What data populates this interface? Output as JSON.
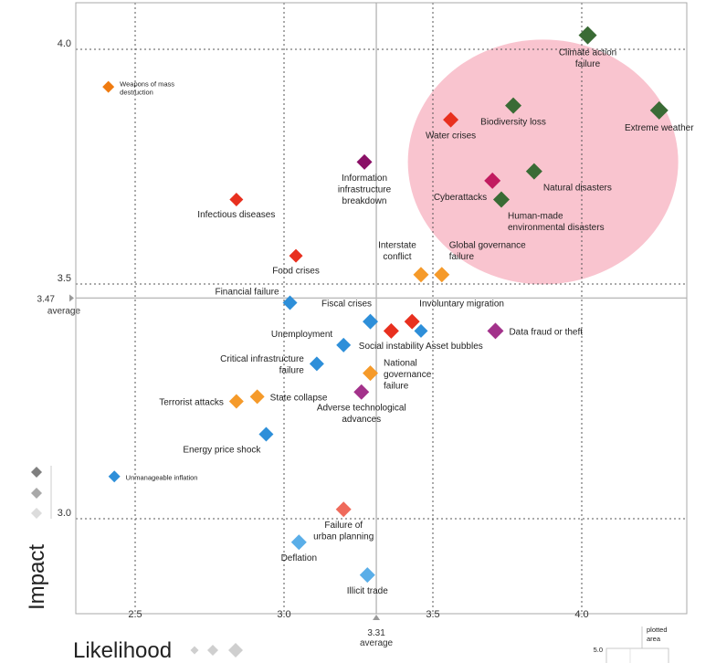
{
  "chart_data": {
    "type": "scatter",
    "title": "",
    "xlabel": "Likelihood",
    "ylabel": "Impact",
    "xlim": [
      2.29,
      4.35
    ],
    "ylim": [
      2.79,
      4.08
    ],
    "x_ticks": [
      {
        "value": 2.5,
        "label": "2.5"
      },
      {
        "value": 3.0,
        "label": "3.0"
      },
      {
        "value": 3.5,
        "label": "3.5"
      },
      {
        "value": 4.0,
        "label": "4.0"
      }
    ],
    "y_ticks": [
      {
        "value": 3.0,
        "label": "3.0"
      },
      {
        "value": 3.5,
        "label": "3.5"
      },
      {
        "value": 4.0,
        "label": "4.0"
      }
    ],
    "grid": true,
    "x_average": {
      "value": 3.31,
      "label": "3.31",
      "caption": "average"
    },
    "y_average": {
      "value": 3.47,
      "label": "3.47",
      "caption": "average"
    },
    "highlight": {
      "shape": "ellipse",
      "center": [
        3.87,
        3.76
      ],
      "color": "#f9c4cf"
    },
    "colors": {
      "environmental": "#3a6b35",
      "economic": "#2e8fd9",
      "economic_light": "#5aaee8",
      "geopolitical": "#f59a2a",
      "geopolitical_dark": "#ef7b10",
      "societal": "#e8301f",
      "societal_light": "#ef6a5b",
      "technological": "#a3328b",
      "technological_dark": "#8a1066",
      "technological_pink": "#c21b60",
      "axis": "#aaaaaa",
      "avg_line": "#bdbdbd"
    },
    "points": [
      {
        "name": "Climate action failure",
        "lines": [
          "Climate action",
          "failure"
        ],
        "x": 4.02,
        "y": 4.03,
        "color": "#3a6b35",
        "size": 10,
        "label_pos": "below"
      },
      {
        "name": "Extreme weather",
        "lines": [
          "Extreme weather"
        ],
        "x": 4.26,
        "y": 3.87,
        "color": "#3a6b35",
        "size": 10,
        "label_pos": "below"
      },
      {
        "name": "Biodiversity loss",
        "lines": [
          "Biodiversity loss"
        ],
        "x": 3.77,
        "y": 3.88,
        "color": "#3a6b35",
        "size": 9,
        "label_pos": "below"
      },
      {
        "name": "Water crises",
        "lines": [
          "Water crises"
        ],
        "x": 3.56,
        "y": 3.85,
        "color": "#e8301f",
        "size": 8.5,
        "label_pos": "below"
      },
      {
        "name": "Natural disasters",
        "lines": [
          "Natural disasters"
        ],
        "x": 3.84,
        "y": 3.74,
        "color": "#3a6b35",
        "size": 9,
        "label_pos": "below-right"
      },
      {
        "name": "Cyberattacks",
        "lines": [
          "Cyberattacks"
        ],
        "x": 3.7,
        "y": 3.72,
        "color": "#c21b60",
        "size": 9,
        "label_pos": "below-left"
      },
      {
        "name": "Human-made environmental disasters",
        "lines": [
          "Human-made",
          "environmental disasters"
        ],
        "x": 3.73,
        "y": 3.68,
        "color": "#3a6b35",
        "size": 9,
        "label_pos": "below-right"
      },
      {
        "name": "Weapons of mass destruction",
        "lines": [
          "Weapons of mass",
          "destruction"
        ],
        "x": 2.41,
        "y": 3.92,
        "color": "#ef7b10",
        "size": 6.5,
        "label_pos": "right",
        "small": true
      },
      {
        "name": "Information infrastructure breakdown",
        "lines": [
          "Information",
          "infrastructure",
          "breakdown"
        ],
        "x": 3.27,
        "y": 3.76,
        "color": "#8a1066",
        "size": 8.5,
        "label_pos": "below"
      },
      {
        "name": "Infectious diseases",
        "lines": [
          "Infectious diseases"
        ],
        "x": 2.84,
        "y": 3.68,
        "color": "#e8301f",
        "size": 7.5,
        "label_pos": "below"
      },
      {
        "name": "Food crises",
        "lines": [
          "Food crises"
        ],
        "x": 3.04,
        "y": 3.56,
        "color": "#e8301f",
        "size": 7.5,
        "label_pos": "below"
      },
      {
        "name": "Interstate conflict",
        "lines": [
          "Interstate",
          "conflict"
        ],
        "x": 3.46,
        "y": 3.52,
        "color": "#f59a2a",
        "size": 8.5,
        "label_pos": "above-left"
      },
      {
        "name": "Global governance failure",
        "lines": [
          "Global governance",
          "failure"
        ],
        "x": 3.53,
        "y": 3.52,
        "color": "#f59a2a",
        "size": 8.5,
        "label_pos": "above-right"
      },
      {
        "name": "Financial failure",
        "lines": [
          "Financial failure"
        ],
        "x": 3.02,
        "y": 3.46,
        "color": "#2e8fd9",
        "size": 8,
        "label_pos": "left-up"
      },
      {
        "name": "Fiscal crises",
        "lines": [
          "Fiscal crises"
        ],
        "x": 3.29,
        "y": 3.42,
        "color": "#2e8fd9",
        "size": 8.5,
        "label_pos": "above-left"
      },
      {
        "name": "Involuntary migration",
        "lines": [
          "Involuntary migration"
        ],
        "x": 3.43,
        "y": 3.42,
        "color": "#e8301f",
        "size": 8.5,
        "label_pos": "above-right"
      },
      {
        "name": "Social instability",
        "lines": [
          "Social instability"
        ],
        "x": 3.36,
        "y": 3.4,
        "color": "#e8301f",
        "size": 8.5,
        "label_pos": "below-social"
      },
      {
        "name": "Asset bubbles",
        "lines": [
          "Asset bubbles"
        ],
        "x": 3.46,
        "y": 3.4,
        "color": "#2e8fd9",
        "size": 7.5,
        "label_pos": "below-right"
      },
      {
        "name": "Data fraud or theft",
        "lines": [
          "Data fraud or theft"
        ],
        "x": 3.71,
        "y": 3.4,
        "color": "#a3328b",
        "size": 9,
        "label_pos": "right"
      },
      {
        "name": "Unemployment",
        "lines": [
          "Unemployment"
        ],
        "x": 3.2,
        "y": 3.37,
        "color": "#2e8fd9",
        "size": 8,
        "label_pos": "left-up"
      },
      {
        "name": "Critical infrastructure failure",
        "lines": [
          "Critical infrastructure",
          "failure"
        ],
        "x": 3.11,
        "y": 3.33,
        "color": "#2e8fd9",
        "size": 8,
        "label_pos": "left"
      },
      {
        "name": "National governance failure",
        "lines": [
          "National",
          "governance",
          "failure"
        ],
        "x": 3.29,
        "y": 3.31,
        "color": "#f59a2a",
        "size": 8.5,
        "label_pos": "right-down"
      },
      {
        "name": "Adverse technological advances",
        "lines": [
          "Adverse technological",
          "advances"
        ],
        "x": 3.26,
        "y": 3.27,
        "color": "#a3328b",
        "size": 8.5,
        "label_pos": "below"
      },
      {
        "name": "State collapse",
        "lines": [
          "State collapse"
        ],
        "x": 2.91,
        "y": 3.26,
        "color": "#f59a2a",
        "size": 8,
        "label_pos": "right"
      },
      {
        "name": "Terrorist attacks",
        "lines": [
          "Terrorist attacks"
        ],
        "x": 2.84,
        "y": 3.25,
        "color": "#f59a2a",
        "size": 8,
        "label_pos": "left"
      },
      {
        "name": "Energy price shock",
        "lines": [
          "Energy price shock"
        ],
        "x": 2.94,
        "y": 3.18,
        "color": "#2e8fd9",
        "size": 8,
        "label_pos": "below-left"
      },
      {
        "name": "Unmanageable inflation",
        "lines": [
          "Unmanageable inflation"
        ],
        "x": 2.43,
        "y": 3.09,
        "color": "#2e8fd9",
        "size": 6.5,
        "label_pos": "right",
        "small": true
      },
      {
        "name": "Failure of urban planning",
        "lines": [
          "Failure of",
          "urban planning"
        ],
        "x": 3.2,
        "y": 3.02,
        "color": "#ef6a5b",
        "size": 8.5,
        "label_pos": "below"
      },
      {
        "name": "Deflation",
        "lines": [
          "Deflation"
        ],
        "x": 3.05,
        "y": 2.95,
        "color": "#5aaee8",
        "size": 8.5,
        "label_pos": "below"
      },
      {
        "name": "Illicit trade",
        "lines": [
          "Illicit trade"
        ],
        "x": 3.28,
        "y": 2.88,
        "color": "#5aaee8",
        "size": 8.5,
        "label_pos": "below"
      }
    ],
    "size_legend_colors": [
      "#7f7f7f",
      "#a9a9a9",
      "#dcdcdc"
    ],
    "inset": {
      "label_lines": [
        "plotted",
        "area"
      ],
      "tick": "5.0"
    }
  }
}
